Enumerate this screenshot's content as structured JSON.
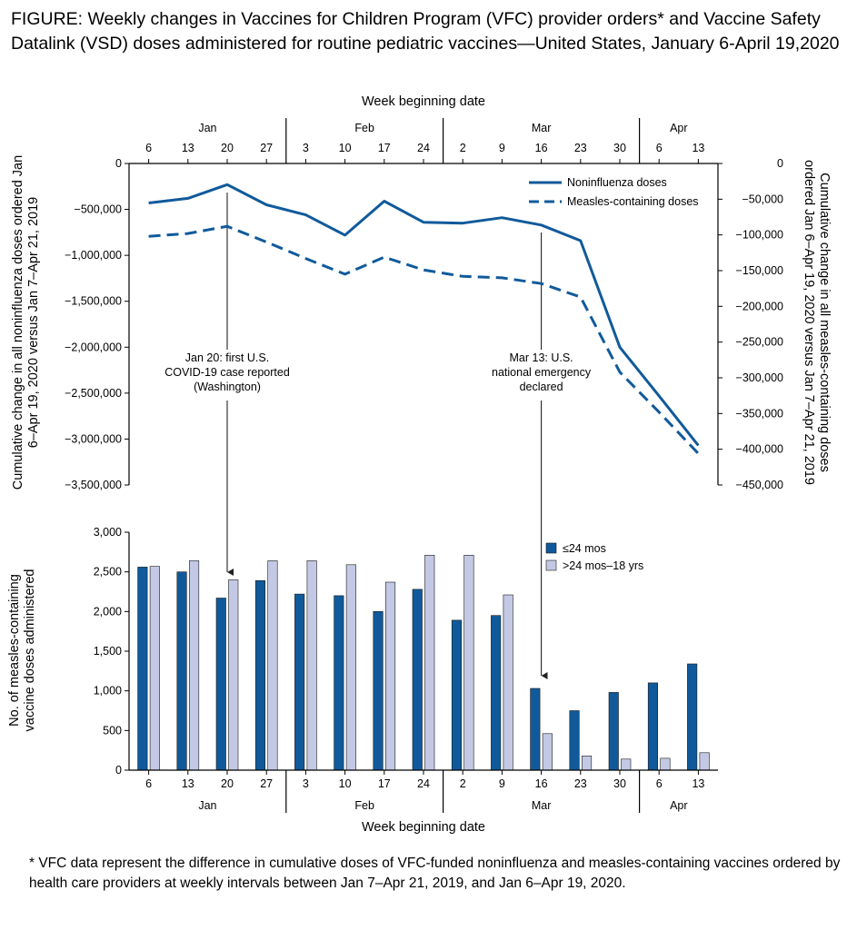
{
  "figure": {
    "title": "FIGURE: Weekly changes in Vaccines for Children Program (VFC) provider orders* and Vaccine Safety Datalink (VSD) doses administered for routine pediatric vaccines—United States, January 6-April 19,2020",
    "footnote": "* VFC data represent the difference in cumulative doses of VFC-funded noninfluenza and measles-containing vaccines ordered by health care providers at weekly intervals between Jan 7–Apr 21, 2019, and Jan 6–Apr 19, 2020."
  },
  "colors": {
    "dark_blue": "#105a9b",
    "light_blue": "#c3c9e4",
    "axis": "#000000"
  },
  "chart_data": [
    {
      "type": "line",
      "xlabel": "Week beginning date",
      "x": [
        "6",
        "13",
        "20",
        "27",
        "3",
        "10",
        "17",
        "24",
        "2",
        "9",
        "16",
        "23",
        "30",
        "6",
        "13"
      ],
      "months": [
        {
          "label": "Jan",
          "first": 0,
          "last": 3
        },
        {
          "label": "Feb",
          "first": 4,
          "last": 7
        },
        {
          "label": "Mar",
          "first": 8,
          "last": 12
        },
        {
          "label": "Apr",
          "first": 13,
          "last": 14
        }
      ],
      "ylabel_left": "Cumulative change in all noninfluenza doses ordered Jan 6–Apr 19, 2020 versus Jan 7–Apr 21, 2019",
      "ylabel_right": "Cumulative change in all measles-containing doses ordered Jan 6–Apr 19, 2020 versus Jan 7–Apr 21, 2019",
      "ylim_left": [
        -3500000,
        0
      ],
      "yticks_left": [
        0,
        -500000,
        -1000000,
        -1500000,
        -2000000,
        -2500000,
        -3000000,
        -3500000
      ],
      "ytick_labels_left": [
        "0",
        "−500,000",
        "−1,000,000",
        "−1,500,000",
        "−2,000,000",
        "−2,500,000",
        "−3,000,000",
        "−3,500,000"
      ],
      "ylim_right": [
        -450000,
        0
      ],
      "yticks_right": [
        0,
        -50000,
        -100000,
        -150000,
        -200000,
        -250000,
        -300000,
        -350000,
        -400000,
        -450000
      ],
      "ytick_labels_right": [
        "0",
        "−50,000",
        "−100,000",
        "−150,000",
        "−200,000",
        "−250,000",
        "−300,000",
        "−350,000",
        "−400,000",
        "−450,000"
      ],
      "legend_position": "top-right",
      "series": [
        {
          "name": "Noninfluenza doses",
          "axis": "left",
          "style": "solid",
          "values": [
            -430000,
            -380000,
            -230000,
            -450000,
            -560000,
            -780000,
            -410000,
            -640000,
            -650000,
            -590000,
            -670000,
            -840000,
            -2000000,
            -2530000,
            -3070000
          ]
        },
        {
          "name": "Measles-containing doses",
          "axis": "right",
          "style": "dashed",
          "values": [
            -102000,
            -98000,
            -88000,
            -110000,
            -133000,
            -155000,
            -131000,
            -149000,
            -158000,
            -160000,
            -168000,
            -187000,
            -292000,
            -348000,
            -406000
          ]
        }
      ],
      "annotations": [
        {
          "at": 2,
          "lines": [
            "Jan 20: first U.S.",
            "COVID-19 case reported",
            "(Washington)"
          ]
        },
        {
          "at": 10,
          "lines": [
            "Mar 13: U.S.",
            "national emergency",
            "declared"
          ]
        }
      ]
    },
    {
      "type": "bar",
      "xlabel": "Week beginning date",
      "categories": [
        "6",
        "13",
        "20",
        "27",
        "3",
        "10",
        "17",
        "24",
        "2",
        "9",
        "16",
        "23",
        "30",
        "6",
        "13"
      ],
      "ylabel": "No. of measles-containing vaccine doses administered",
      "ylim": [
        0,
        3000
      ],
      "yticks": [
        0,
        500,
        1000,
        1500,
        2000,
        2500,
        3000
      ],
      "ytick_labels": [
        "0",
        "500",
        "1,000",
        "1,500",
        "2,000",
        "2,500",
        "3,000"
      ],
      "legend_position": "top-right",
      "series": [
        {
          "name": "≤24 mos",
          "values": [
            2560,
            2500,
            2170,
            2390,
            2220,
            2200,
            2000,
            2280,
            1890,
            1950,
            1030,
            750,
            980,
            1100,
            1340
          ]
        },
        {
          "name": ">24 mos–18 yrs",
          "values": [
            2570,
            2640,
            2400,
            2640,
            2640,
            2590,
            2370,
            2710,
            2710,
            2210,
            460,
            180,
            140,
            150,
            220
          ]
        }
      ]
    }
  ]
}
